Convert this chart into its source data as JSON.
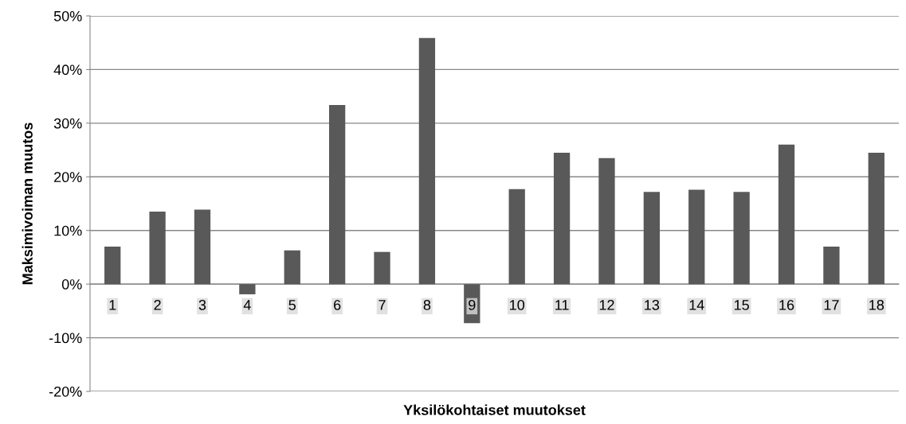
{
  "chart_data": {
    "type": "bar",
    "xlabel": "Yksilökohtaiset muutokset",
    "ylabel": "Maksimivoiman muutos",
    "categories": [
      "1",
      "2",
      "3",
      "4",
      "5",
      "6",
      "7",
      "8",
      "9",
      "10",
      "11",
      "12",
      "13",
      "14",
      "15",
      "16",
      "17",
      "18"
    ],
    "values": [
      7.0,
      13.5,
      13.9,
      -1.9,
      6.3,
      33.4,
      6.0,
      45.9,
      -7.3,
      17.7,
      24.5,
      23.5,
      17.2,
      17.6,
      17.2,
      26.0,
      7.0,
      24.5
    ],
    "color": "#595959",
    "ylim": [
      -20,
      50
    ],
    "yticks": [
      {
        "value": -20,
        "label": "-20%"
      },
      {
        "value": -10,
        "label": "-10%"
      },
      {
        "value": 0,
        "label": "0%"
      },
      {
        "value": 10,
        "label": "10%"
      },
      {
        "value": 20,
        "label": "20%"
      },
      {
        "value": 30,
        "label": "30%"
      },
      {
        "value": 40,
        "label": "40%"
      },
      {
        "value": 50,
        "label": "50%"
      }
    ],
    "grid": "y",
    "legend": false
  }
}
